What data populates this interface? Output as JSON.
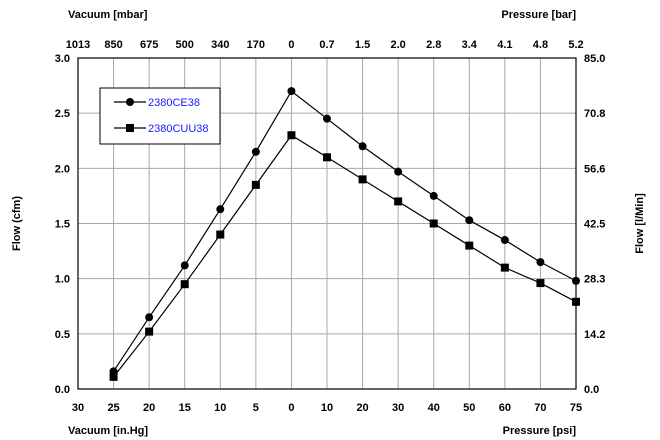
{
  "chart_data": {
    "type": "line",
    "grid": true,
    "legend_position": "top-left",
    "x_bottom": {
      "label_left": "Vacuum [in.Hg]",
      "label_right": "Pressure [psi]",
      "ticks": [
        "30",
        "25",
        "20",
        "15",
        "10",
        "5",
        "0",
        "10",
        "20",
        "30",
        "40",
        "50",
        "60",
        "70",
        "75"
      ]
    },
    "x_top": {
      "label_left": "Vacuum [mbar]",
      "label_right": "Pressure [bar]",
      "ticks": [
        "1013",
        "850",
        "675",
        "500",
        "340",
        "170",
        "0",
        "0.7",
        "1.5",
        "2.0",
        "2.8",
        "3.4",
        "4.1",
        "4.8",
        "5.2"
      ]
    },
    "y_left": {
      "label": "Flow (cfm)",
      "ylim": [
        0,
        3.0
      ],
      "ticks": [
        "0.0",
        "0.5",
        "1.0",
        "1.5",
        "2.0",
        "2.5",
        "3.0"
      ]
    },
    "y_right": {
      "label": "Flow [l/Min]",
      "ticks": [
        "0.0",
        "14.2",
        "28.3",
        "42.5",
        "56.6",
        "70.8",
        "85.0"
      ]
    },
    "categories": [
      "30",
      "25",
      "20",
      "15",
      "10",
      "5",
      "0",
      "10",
      "20",
      "30",
      "40",
      "50",
      "60",
      "70",
      "75"
    ],
    "series": [
      {
        "name": "2380CE38",
        "marker": "circle",
        "values": [
          null,
          0.16,
          0.65,
          1.12,
          1.63,
          2.15,
          2.7,
          2.45,
          2.2,
          1.97,
          1.75,
          1.53,
          1.35,
          1.15,
          0.98
        ]
      },
      {
        "name": "2380CUU38",
        "marker": "square",
        "values": [
          null,
          0.11,
          0.52,
          0.95,
          1.4,
          1.85,
          2.3,
          2.1,
          1.9,
          1.7,
          1.5,
          1.3,
          1.1,
          0.96,
          0.79
        ]
      }
    ]
  }
}
